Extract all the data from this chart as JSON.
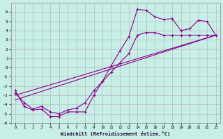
{
  "xlabel": "Windchill (Refroidissement éolien,°C)",
  "bg_color": "#c8eee8",
  "line_color": "#880088",
  "grid_color": "#b0b0b0",
  "xlim": [
    -0.5,
    23.5
  ],
  "ylim": [
    -6,
    7
  ],
  "xticks": [
    0,
    1,
    2,
    3,
    4,
    5,
    6,
    7,
    8,
    9,
    10,
    11,
    12,
    13,
    14,
    15,
    16,
    17,
    18,
    19,
    20,
    21,
    22,
    23
  ],
  "yticks": [
    -6,
    -5,
    -4,
    -3,
    -2,
    -1,
    0,
    1,
    2,
    3,
    4,
    5,
    6
  ],
  "line1_x": [
    0,
    1,
    2,
    3,
    4,
    5,
    6,
    7,
    8,
    9,
    10,
    11,
    12,
    13,
    14,
    15,
    16,
    17,
    18,
    19,
    20,
    21,
    22,
    23
  ],
  "line1_y": [
    -2.5,
    -4.2,
    -4.6,
    -4.5,
    -5.3,
    -5.3,
    -4.8,
    -4.8,
    -4.8,
    -3.0,
    -1.5,
    0.2,
    1.8,
    3.3,
    6.3,
    6.2,
    5.5,
    5.2,
    5.3,
    4.0,
    4.2,
    5.1,
    5.0,
    3.5
  ],
  "line2_x": [
    0,
    1,
    2,
    3,
    4,
    5,
    6,
    7,
    8,
    9,
    10,
    11,
    12,
    13,
    14,
    15,
    16,
    17,
    18,
    19,
    20,
    21,
    22,
    23
  ],
  "line2_y": [
    -2.8,
    -3.8,
    -4.5,
    -4.2,
    -4.8,
    -5.0,
    -4.6,
    -4.4,
    -3.8,
    -2.5,
    -1.5,
    -0.5,
    0.5,
    1.5,
    3.5,
    3.8,
    3.8,
    3.5,
    3.5,
    3.5,
    3.5,
    3.5,
    3.5,
    3.5
  ],
  "line3_x": [
    0,
    23
  ],
  "line3_y": [
    -3.5,
    3.5
  ],
  "line4_x": [
    0,
    23
  ],
  "line4_y": [
    -3.0,
    3.5
  ]
}
